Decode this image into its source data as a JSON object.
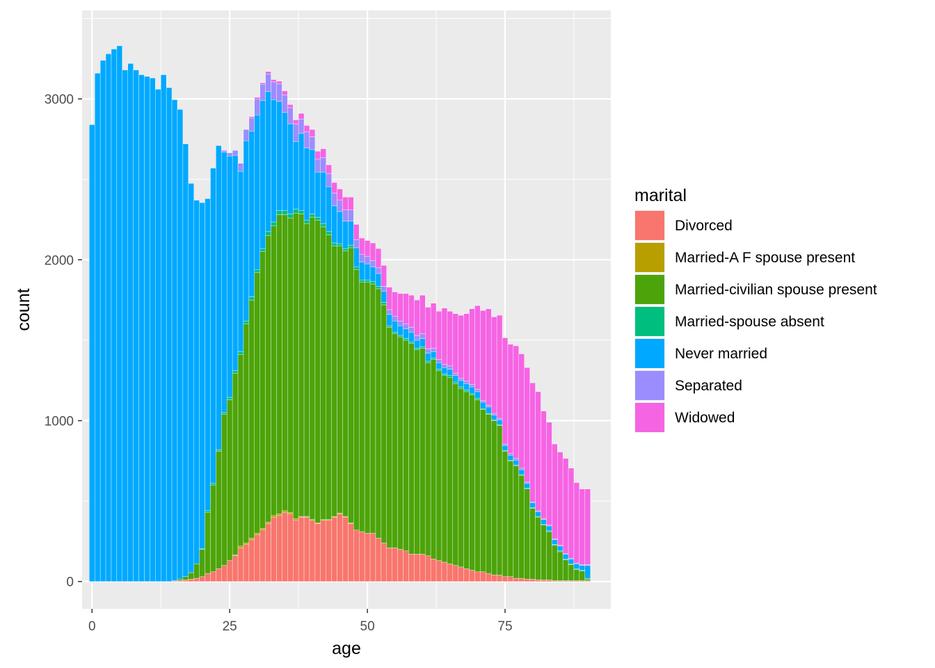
{
  "chart_data": {
    "type": "bar",
    "stacked": true,
    "title": "",
    "xlabel": "age",
    "ylabel": "count",
    "xlim": [
      -1.8,
      94.2
    ],
    "ylim": [
      -170,
      3550
    ],
    "x_ticks": [
      0,
      25,
      50,
      75
    ],
    "y_ticks": [
      0,
      1000,
      2000,
      3000
    ],
    "grid": true,
    "legend": {
      "title": "marital",
      "position": "right"
    },
    "x": [
      0,
      1,
      2,
      3,
      4,
      5,
      6,
      7,
      8,
      9,
      10,
      11,
      12,
      13,
      14,
      15,
      16,
      17,
      18,
      19,
      20,
      21,
      22,
      23,
      24,
      25,
      26,
      27,
      28,
      29,
      30,
      31,
      32,
      33,
      34,
      35,
      36,
      37,
      38,
      39,
      40,
      41,
      42,
      43,
      44,
      45,
      46,
      47,
      48,
      49,
      50,
      51,
      52,
      53,
      54,
      55,
      56,
      57,
      58,
      59,
      60,
      61,
      62,
      63,
      64,
      65,
      66,
      67,
      68,
      69,
      70,
      71,
      72,
      73,
      74,
      75,
      76,
      77,
      78,
      79,
      80,
      81,
      82,
      83,
      84,
      85,
      86,
      87,
      88,
      89,
      90
    ],
    "series": [
      {
        "name": "Divorced",
        "color": "#F8766D",
        "values": [
          0,
          0,
          0,
          0,
          0,
          0,
          0,
          0,
          0,
          0,
          0,
          0,
          0,
          0,
          0,
          5,
          5,
          10,
          15,
          20,
          30,
          50,
          60,
          80,
          100,
          130,
          160,
          210,
          230,
          260,
          290,
          320,
          360,
          400,
          410,
          430,
          420,
          380,
          400,
          400,
          380,
          360,
          380,
          380,
          400,
          420,
          400,
          360,
          320,
          310,
          300,
          300,
          270,
          240,
          210,
          210,
          200,
          190,
          170,
          170,
          170,
          160,
          140,
          130,
          120,
          110,
          100,
          90,
          80,
          70,
          60,
          60,
          50,
          40,
          40,
          30,
          30,
          20,
          20,
          15,
          15,
          10,
          10,
          10,
          5,
          5,
          5,
          5,
          5,
          5,
          5
        ]
      },
      {
        "name": "Married-A F spouse present",
        "color": "#B79F00",
        "values": [
          0,
          0,
          0,
          0,
          0,
          0,
          0,
          0,
          0,
          0,
          0,
          0,
          0,
          0,
          0,
          0,
          0,
          0,
          0,
          0,
          0,
          0,
          0,
          0,
          0,
          0,
          5,
          10,
          10,
          10,
          10,
          10,
          10,
          10,
          10,
          10,
          10,
          10,
          5,
          5,
          5,
          5,
          5,
          5,
          5,
          5,
          5,
          5,
          0,
          0,
          0,
          0,
          0,
          0,
          0,
          0,
          0,
          0,
          0,
          0,
          0,
          0,
          0,
          0,
          0,
          0,
          0,
          0,
          0,
          0,
          0,
          0,
          0,
          0,
          0,
          0,
          0,
          0,
          0,
          0,
          0,
          0,
          0,
          0,
          0,
          0,
          0,
          0,
          0,
          0,
          0
        ]
      },
      {
        "name": "Married-civilian spouse present",
        "color": "#4DA40A",
        "values": [
          0,
          0,
          0,
          0,
          0,
          0,
          0,
          0,
          0,
          0,
          0,
          0,
          0,
          0,
          0,
          0,
          10,
          20,
          40,
          90,
          170,
          380,
          540,
          730,
          940,
          1000,
          1130,
          1190,
          1360,
          1480,
          1620,
          1720,
          1780,
          1800,
          1860,
          1840,
          1830,
          1900,
          1880,
          1820,
          1880,
          1880,
          1820,
          1770,
          1680,
          1660,
          1650,
          1710,
          1620,
          1550,
          1560,
          1550,
          1550,
          1480,
          1370,
          1330,
          1320,
          1310,
          1310,
          1270,
          1280,
          1200,
          1240,
          1180,
          1160,
          1160,
          1130,
          1110,
          1100,
          1090,
          1070,
          1010,
          990,
          960,
          930,
          780,
          720,
          700,
          640,
          560,
          440,
          390,
          340,
          300,
          220,
          180,
          130,
          100,
          70,
          60,
          10
        ]
      },
      {
        "name": "Married-spouse absent",
        "color": "#00BE7D",
        "values": [
          0,
          0,
          0,
          0,
          0,
          0,
          0,
          0,
          0,
          0,
          0,
          0,
          0,
          0,
          0,
          0,
          0,
          0,
          0,
          0,
          5,
          10,
          10,
          10,
          10,
          15,
          15,
          20,
          20,
          20,
          20,
          20,
          25,
          25,
          25,
          25,
          25,
          25,
          20,
          20,
          20,
          20,
          20,
          20,
          20,
          15,
          15,
          15,
          15,
          15,
          15,
          15,
          15,
          15,
          10,
          10,
          10,
          10,
          10,
          10,
          10,
          10,
          10,
          10,
          10,
          10,
          10,
          10,
          10,
          10,
          10,
          5,
          5,
          5,
          5,
          5,
          5,
          5,
          5,
          5,
          5,
          5,
          5,
          5,
          5,
          5,
          5,
          5,
          5,
          5,
          5
        ]
      },
      {
        "name": "Never married",
        "color": "#00A9FF",
        "values": [
          2840,
          3160,
          3240,
          3280,
          3310,
          3330,
          3180,
          3220,
          3180,
          3150,
          3140,
          3130,
          3060,
          3150,
          3070,
          2990,
          2920,
          2690,
          2420,
          2260,
          2150,
          1940,
          1960,
          1890,
          1620,
          1500,
          1340,
          1120,
          1120,
          1030,
          960,
          920,
          870,
          760,
          680,
          610,
          560,
          420,
          480,
          450,
          400,
          280,
          320,
          280,
          230,
          200,
          170,
          150,
          120,
          110,
          100,
          90,
          80,
          70,
          70,
          70,
          60,
          60,
          60,
          50,
          50,
          50,
          40,
          40,
          40,
          40,
          40,
          40,
          40,
          40,
          40,
          40,
          40,
          30,
          30,
          30,
          30,
          30,
          30,
          30,
          30,
          30,
          30,
          30,
          30,
          30,
          30,
          30,
          30,
          30,
          80
        ]
      },
      {
        "name": "Separated",
        "color": "#9C8DFF",
        "values": [
          0,
          0,
          0,
          0,
          0,
          0,
          0,
          0,
          0,
          0,
          0,
          0,
          0,
          0,
          0,
          0,
          0,
          0,
          0,
          0,
          0,
          0,
          0,
          0,
          10,
          20,
          30,
          50,
          70,
          80,
          100,
          100,
          110,
          110,
          110,
          110,
          100,
          110,
          90,
          100,
          80,
          80,
          90,
          80,
          80,
          70,
          70,
          70,
          50,
          50,
          45,
          40,
          35,
          30,
          30,
          30,
          30,
          30,
          30,
          30,
          30,
          25,
          20,
          20,
          20,
          20,
          15,
          15,
          15,
          15,
          15,
          10,
          10,
          10,
          10,
          10,
          10,
          10,
          10,
          10,
          5,
          5,
          5,
          5,
          5,
          5,
          5,
          5,
          5,
          5,
          5
        ]
      },
      {
        "name": "Widowed",
        "color": "#F564E3",
        "values": [
          0,
          0,
          0,
          0,
          0,
          0,
          0,
          0,
          0,
          0,
          0,
          0,
          0,
          0,
          0,
          0,
          0,
          0,
          0,
          0,
          0,
          0,
          0,
          0,
          0,
          0,
          0,
          0,
          0,
          10,
          10,
          10,
          15,
          15,
          15,
          25,
          20,
          25,
          35,
          40,
          45,
          50,
          55,
          55,
          65,
          70,
          80,
          80,
          95,
          100,
          100,
          110,
          120,
          130,
          140,
          150,
          170,
          190,
          200,
          220,
          240,
          260,
          280,
          300,
          350,
          340,
          370,
          390,
          420,
          470,
          520,
          560,
          600,
          600,
          640,
          660,
          680,
          700,
          710,
          710,
          740,
          740,
          670,
          640,
          590,
          580,
          590,
          560,
          500,
          470,
          470
        ]
      }
    ]
  }
}
